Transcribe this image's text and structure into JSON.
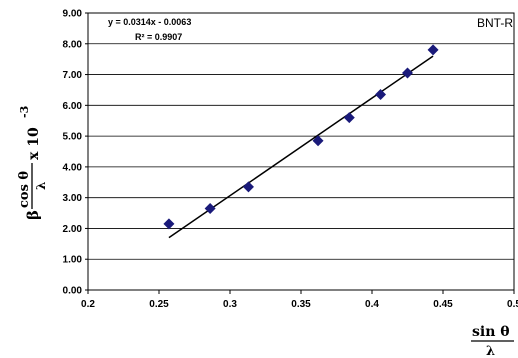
{
  "chart_data": {
    "type": "scatter",
    "series_label": "BNT-R",
    "equation": "y = 0.0314x - 0.0063",
    "r_squared": "R² = 0.9907",
    "xlim": [
      0.2,
      0.5
    ],
    "ylim": [
      0,
      9
    ],
    "x_ticks": [
      "0.2",
      "0.25",
      "0.3",
      "0.35",
      "0.4",
      "0.45",
      "0.5"
    ],
    "y_ticks": [
      "0.00",
      "1.00",
      "2.00",
      "3.00",
      "4.00",
      "5.00",
      "6.00",
      "7.00",
      "8.00",
      "9.00"
    ],
    "grid": "horizontal",
    "points": [
      {
        "x": 0.257,
        "y": 2.15
      },
      {
        "x": 0.286,
        "y": 2.65
      },
      {
        "x": 0.313,
        "y": 3.35
      },
      {
        "x": 0.362,
        "y": 4.85
      },
      {
        "x": 0.384,
        "y": 5.6
      },
      {
        "x": 0.406,
        "y": 6.35
      },
      {
        "x": 0.425,
        "y": 7.05
      },
      {
        "x": 0.443,
        "y": 7.8
      }
    ],
    "trendline": {
      "x": [
        0.257,
        0.443
      ],
      "y": [
        1.7,
        7.6
      ]
    },
    "xlabel": {
      "num": "sin θ",
      "den": "λ"
    },
    "ylabel": {
      "prefix": "β",
      "num": "cos θ",
      "den": "λ",
      "suffix": "x 10",
      "exp": "-3"
    }
  },
  "colors": {
    "marker": "#1a1a7a",
    "line": "#000000",
    "grid": "#000000"
  }
}
